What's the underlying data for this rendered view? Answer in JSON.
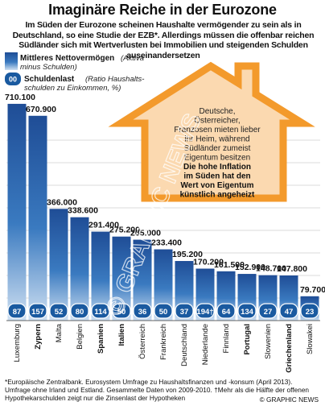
{
  "title": "Imaginäre Reiche in der Eurozone",
  "subtitle": "Im Süden der Eurozone scheinen Haushalte vermögender zu sein als in Deutschland, so eine Studie der EZB*. Allerdings müssen die offenbar reichen Südländer sich mit Wertverlusten bei Immobilien und steigenden Schulden auseinandersetzen",
  "legend": {
    "series1_label": "Mittleres Nettovermögen",
    "series1_note": "(Aktiva minus Schulden)",
    "series2_badge": "00",
    "series2_label": "Schuldenlast",
    "series2_note": "(Ratio Haushalts-schulden zu Einkommen, %)"
  },
  "house_text": {
    "normal_lines": [
      "Deutsche,",
      "Österreicher,",
      "Franzosen mieten lieber",
      "ihr Heim, während",
      "Südländer zumeist",
      "Eigentum besitzen"
    ],
    "bold_lines": [
      "Die hohe Inflation",
      "im Süden hat den",
      "Wert von Eigentum",
      "künstlich angeheizt"
    ]
  },
  "watermark": "© GRAPHIC NEWS",
  "footnote_lines": [
    "*Europäische Zentralbank. Eurosystem Umfrage zu Haushaltsfinanzen und -konsum (April 2013).",
    "Umfrage ohne Irland und Estland. Gesammelte Daten von 2009-2010. †Mehr als die Hälfte der offenen",
    "Hypothekarschulden zeigt nur die Zinsenlast der Hypotheken"
  ],
  "credit": "© GRAPHIC NEWS",
  "colors": {
    "bar_dark": "#1f4d96",
    "bar_mid": "#3a7ac0",
    "bar_light": "#cfe0f2",
    "badge": "#1a5aa0",
    "house_fill": "#fbd9b0",
    "house_stroke": "#f39a2c",
    "grid": "#b8b8b8"
  },
  "chart_data": {
    "type": "bar",
    "categories": [
      "Luxemburg",
      "Zypern",
      "Malta",
      "Belgien",
      "Spanien",
      "Italien",
      "Österreich",
      "Frankreich",
      "Deutschland",
      "Niederlande",
      "Finnland",
      "Portugal",
      "Slowenien",
      "Griechenland",
      "Slowakei"
    ],
    "bold_categories": [
      "Zypern",
      "Spanien",
      "Italien",
      "Portugal",
      "Griechenland"
    ],
    "series": [
      {
        "name": "Mittleres Nettovermögen",
        "values": [
          710100,
          670900,
          366000,
          338600,
          291400,
          275200,
          265000,
          233400,
          195200,
          170200,
          161500,
          152900,
          148700,
          147800,
          79700
        ],
        "value_labels": [
          "710.100",
          "670.900",
          "366.000",
          "338.600",
          "291.400",
          "275.200",
          "265.000",
          "233.400",
          "195.200",
          "170.200",
          "161.500",
          "152.900",
          "148.700",
          "147.800",
          "79.700"
        ]
      },
      {
        "name": "Schuldenlast",
        "values": [
          87,
          157,
          52,
          80,
          114,
          50,
          36,
          50,
          37,
          194,
          64,
          134,
          27,
          47,
          23
        ],
        "value_labels": [
          "87",
          "157",
          "52",
          "80",
          "114",
          "50",
          "36",
          "50",
          "37",
          "194†",
          "64",
          "134",
          "27",
          "47",
          "23"
        ]
      }
    ],
    "ylim": [
      0,
      760000
    ],
    "grid": true
  }
}
